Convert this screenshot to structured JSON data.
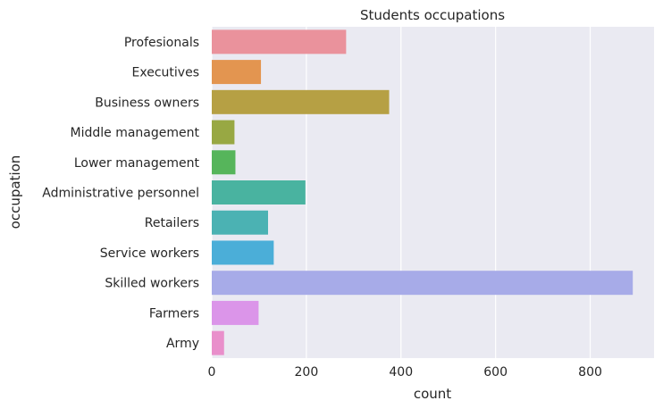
{
  "chart_data": {
    "type": "bar",
    "orientation": "horizontal",
    "title": "Students occupations",
    "xlabel": "count",
    "ylabel": "occupation",
    "xlim": [
      0,
      935
    ],
    "xticks": [
      0,
      200,
      400,
      600,
      800
    ],
    "grid": true,
    "categories": [
      "Profesionals",
      "Executives",
      "Business owners",
      "Middle management",
      "Lower management",
      "Administrative personnel",
      "Retailers",
      "Service workers",
      "Skilled workers",
      "Farmers",
      "Army"
    ],
    "values": [
      284,
      104,
      375,
      48,
      50,
      198,
      119,
      131,
      890,
      99,
      26
    ],
    "colors": [
      "#ea929c",
      "#e39550",
      "#b6a044",
      "#98a843",
      "#56b55b",
      "#49b3a0",
      "#4bb2b3",
      "#4baed8",
      "#a7abe8",
      "#db95e9",
      "#e98fcb"
    ],
    "background": "#eaeaf2",
    "grid_color": "#ffffff"
  }
}
